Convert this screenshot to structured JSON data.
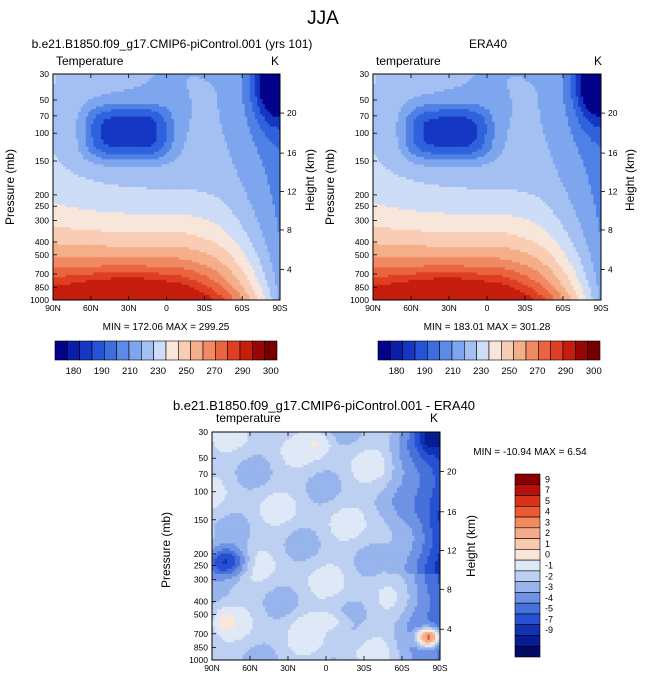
{
  "page_title": "JJA",
  "chart_data": [
    {
      "type": "heatmap",
      "title": "b.e21.B1850.f09_g17.CMIP6-piControl.001 (yrs 101)",
      "subtitle_left": "Temperature",
      "units": "K",
      "ylabel": "Pressure (mb)",
      "ylabel_right": "Height (km)",
      "x_ticks": [
        "90N",
        "60N",
        "30N",
        "0",
        "30S",
        "60S",
        "90S"
      ],
      "y_ticks": [
        "30",
        "50",
        "70",
        "100",
        "150",
        "200",
        "250",
        "300",
        "400",
        "500",
        "700",
        "850",
        "1000"
      ],
      "height_ticks": [
        "20",
        "16",
        "12",
        "8",
        "4"
      ],
      "stats": "MIN = 172.06   MAX = 299.25",
      "min": 172.06,
      "max": 299.25
    },
    {
      "type": "heatmap",
      "title": "ERA40",
      "subtitle_left": "temperature",
      "units": "K",
      "ylabel": "Pressure (mb)",
      "ylabel_right": "Height (km)",
      "x_ticks": [
        "90N",
        "60N",
        "30N",
        "0",
        "30S",
        "60S",
        "90S"
      ],
      "y_ticks": [
        "30",
        "50",
        "70",
        "100",
        "150",
        "200",
        "250",
        "300",
        "400",
        "500",
        "700",
        "850",
        "1000"
      ],
      "height_ticks": [
        "20",
        "16",
        "12",
        "8",
        "4"
      ],
      "stats": "MIN = 183.01   MAX = 301.28",
      "min": 183.01,
      "max": 301.28
    },
    {
      "type": "heatmap",
      "title": "b.e21.B1850.f09_g17.CMIP6-piControl.001 - ERA40",
      "subtitle_left": "temperature",
      "units": "K",
      "ylabel": "Pressure (mb)",
      "ylabel_right": "Height (km)",
      "x_ticks": [
        "90N",
        "60N",
        "30N",
        "0",
        "30S",
        "60S",
        "90S"
      ],
      "y_ticks": [
        "30",
        "50",
        "70",
        "100",
        "150",
        "200",
        "250",
        "300",
        "400",
        "500",
        "700",
        "850",
        "1000"
      ],
      "height_ticks": [
        "20",
        "16",
        "12",
        "8",
        "4"
      ],
      "stats": "MIN = -10.94   MAX =    6.54",
      "min": -10.94,
      "max": 6.54
    }
  ],
  "colorbar_abs": {
    "labels": [
      "180",
      "190",
      "210",
      "230",
      "250",
      "270",
      "290",
      "300"
    ],
    "colors": [
      "#03038a",
      "#0a1ea8",
      "#1537c4",
      "#2552d6",
      "#3d6ee0",
      "#5b8ae8",
      "#7ea6ee",
      "#a4c0f2",
      "#cddcf7",
      "#f8e6da",
      "#f8cdb4",
      "#f4ae8a",
      "#f08a63",
      "#ea6440",
      "#de3f22",
      "#c51e0e",
      "#9a0606",
      "#760000"
    ]
  },
  "colorbar_diff": {
    "labels": [
      "9",
      "7",
      "5",
      "4",
      "3",
      "2",
      "1",
      "0",
      "-1",
      "-2",
      "-3",
      "-4",
      "-5",
      "-7",
      "-9"
    ],
    "colors": [
      "#8a0000",
      "#b8100a",
      "#d8321a",
      "#ec5a32",
      "#f28a62",
      "#f5ac8a",
      "#f8c9ad",
      "#fbe6d8",
      "#dfe8f6",
      "#bdd0f1",
      "#97b4ec",
      "#6f92e4",
      "#4670da",
      "#2750d2",
      "#1232b4",
      "#061d92",
      "#020a66"
    ]
  },
  "colors": {
    "abs_levels": [
      "#03038a",
      "#1537c4",
      "#2f62dc",
      "#4f81e6",
      "#7ea6ee",
      "#a4c0f2",
      "#cddcf7",
      "#f8e6da",
      "#f8cdb4",
      "#f4ae8a",
      "#f08a63",
      "#ea6440",
      "#de3f22",
      "#c51e0e"
    ],
    "diff_levels": [
      "#061d92",
      "#1232b4",
      "#2750d2",
      "#4670da",
      "#6f92e4",
      "#97b4ec",
      "#bdd0f1",
      "#dfe8f6",
      "#fbe6d8",
      "#f8c9ad",
      "#f5ac8a",
      "#ec5a32",
      "#d8321a"
    ]
  }
}
